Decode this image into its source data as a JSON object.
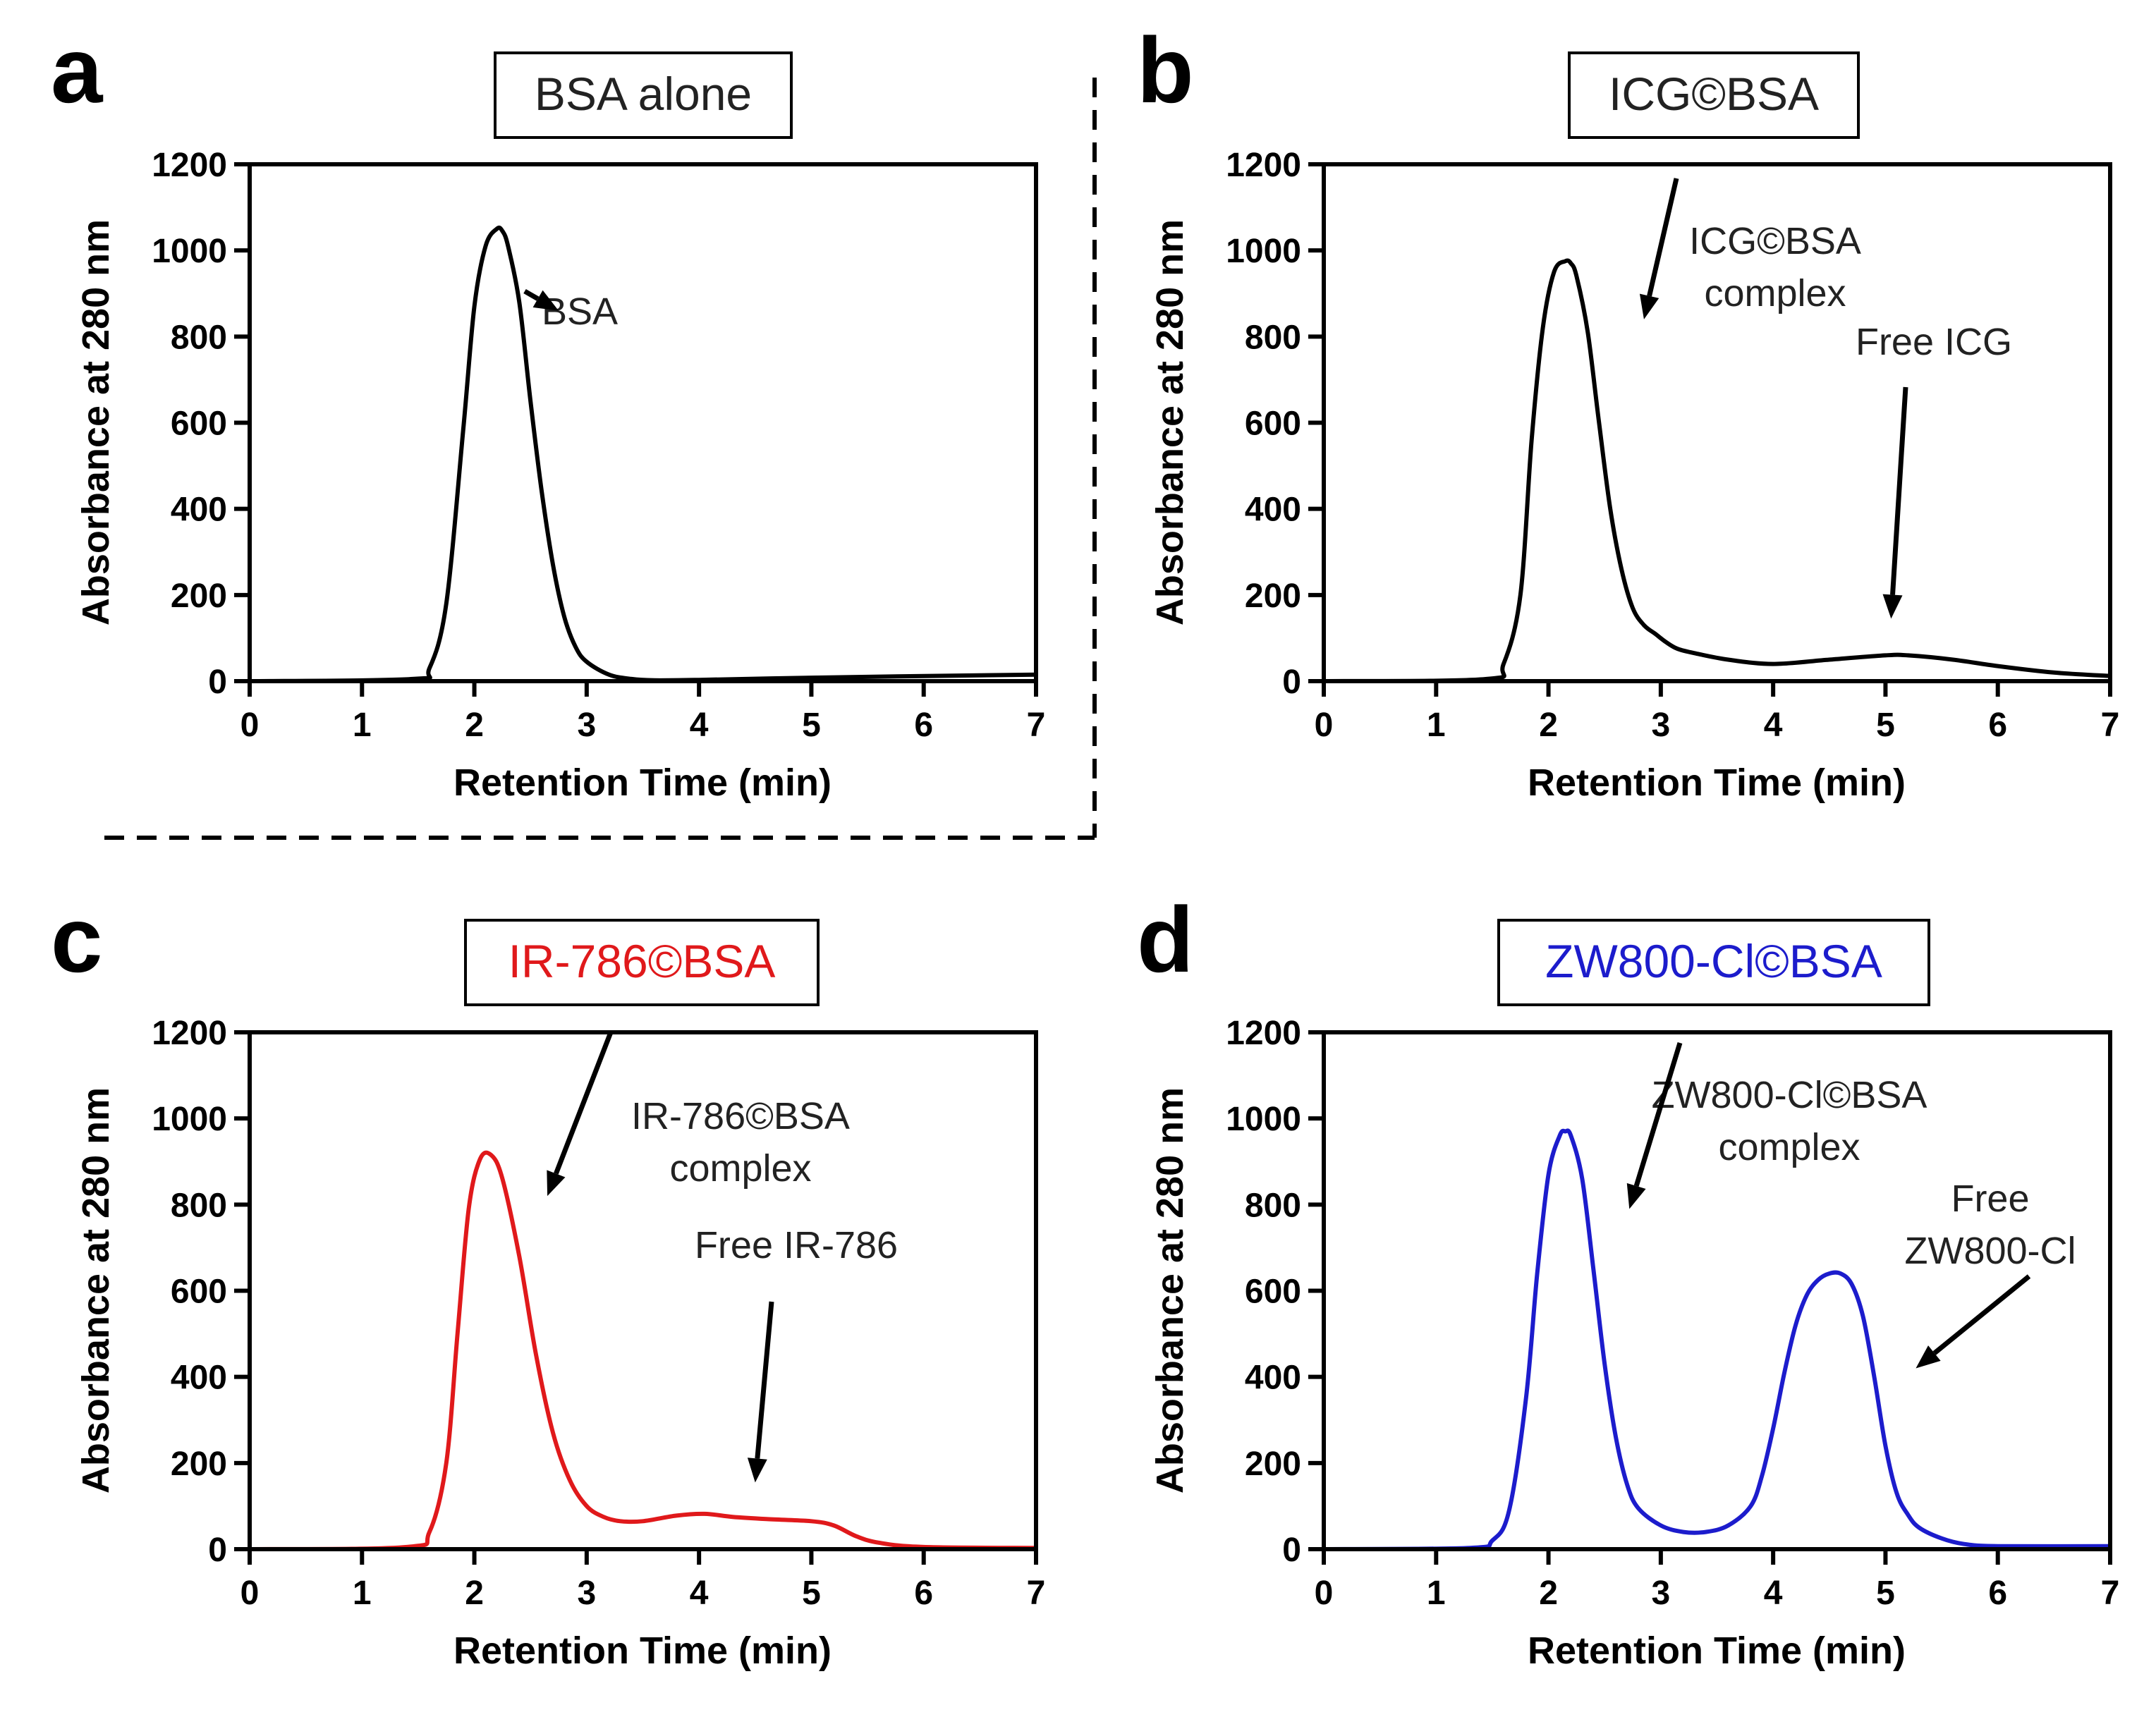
{
  "figure": {
    "divider_color": "#000000"
  },
  "chart_data": [
    {
      "panel": "a",
      "type": "line",
      "title": "BSA alone",
      "title_color": "#222222",
      "line_color": "#000000",
      "xlabel": "Retention Time (min)",
      "ylabel": "Absorbance at 280 nm",
      "xlim": [
        0,
        7
      ],
      "ylim": [
        0,
        1200
      ],
      "xticks": [
        0,
        1,
        2,
        3,
        4,
        5,
        6,
        7
      ],
      "yticks": [
        0,
        200,
        400,
        600,
        800,
        1000,
        1200
      ],
      "grid": false,
      "series": [
        {
          "name": "BSA alone",
          "x": [
            0,
            1.45,
            1.6,
            1.75,
            1.9,
            2.0,
            2.1,
            2.2,
            2.25,
            2.3,
            2.4,
            2.5,
            2.6,
            2.7,
            2.8,
            2.9,
            3.0,
            3.2,
            3.4,
            3.6,
            4.0,
            5.0,
            6.0,
            7.0
          ],
          "y": [
            0,
            5,
            30,
            180,
            580,
            870,
            1010,
            1050,
            1045,
            1010,
            880,
            650,
            440,
            270,
            150,
            80,
            45,
            15,
            5,
            2,
            3,
            8,
            12,
            15
          ]
        }
      ],
      "annotations": [
        {
          "lines": [
            "BSA"
          ],
          "point_to": [
            2.75,
            860
          ]
        }
      ]
    },
    {
      "panel": "b",
      "type": "line",
      "title": "ICG©BSA",
      "title_color": "#222222",
      "line_color": "#000000",
      "xlabel": "Retention Time (min)",
      "ylabel": "Absorbance at 280 nm",
      "xlim": [
        0,
        7
      ],
      "ylim": [
        0,
        1200
      ],
      "xticks": [
        0,
        1,
        2,
        3,
        4,
        5,
        6,
        7
      ],
      "yticks": [
        0,
        200,
        400,
        600,
        800,
        1000,
        1200
      ],
      "grid": false,
      "series": [
        {
          "name": "ICG©BSA",
          "x": [
            0,
            1.45,
            1.6,
            1.75,
            1.85,
            1.95,
            2.05,
            2.15,
            2.2,
            2.25,
            2.35,
            2.45,
            2.55,
            2.65,
            2.75,
            2.85,
            2.95,
            3.05,
            3.15,
            3.3,
            3.6,
            4.0,
            4.5,
            5.0,
            5.2,
            5.6,
            6.0,
            6.5,
            7.0
          ],
          "y": [
            0,
            5,
            40,
            200,
            560,
            820,
            950,
            975,
            970,
            940,
            810,
            600,
            400,
            260,
            170,
            130,
            110,
            90,
            75,
            65,
            50,
            40,
            50,
            60,
            60,
            50,
            35,
            20,
            12
          ]
        }
      ],
      "annotations": [
        {
          "lines": [
            "ICG©BSA",
            "complex"
          ],
          "point_to": [
            2.85,
            840
          ]
        },
        {
          "lines": [
            "Free ICG"
          ],
          "point_to": [
            5.05,
            145
          ]
        }
      ]
    },
    {
      "panel": "c",
      "type": "line",
      "title": "IR-786©BSA",
      "title_color": "#e0191b",
      "line_color": "#e0191b",
      "xlabel": "Retention Time (min)",
      "ylabel": "Absorbance at 280 nm",
      "xlim": [
        0,
        7
      ],
      "ylim": [
        0,
        1200
      ],
      "xticks": [
        0,
        1,
        2,
        3,
        4,
        5,
        6,
        7
      ],
      "yticks": [
        0,
        200,
        400,
        600,
        800,
        1000,
        1200
      ],
      "grid": false,
      "series": [
        {
          "name": "IR-786©BSA",
          "x": [
            0,
            1.4,
            1.6,
            1.75,
            1.85,
            1.95,
            2.05,
            2.15,
            2.25,
            2.4,
            2.55,
            2.7,
            2.85,
            3.0,
            3.15,
            3.3,
            3.5,
            3.8,
            4.05,
            4.3,
            4.6,
            5.0,
            5.2,
            5.4,
            5.6,
            6.0,
            7.0
          ],
          "y": [
            0,
            5,
            40,
            200,
            500,
            790,
            905,
            915,
            860,
            680,
            450,
            270,
            160,
            100,
            75,
            65,
            65,
            78,
            82,
            75,
            70,
            65,
            55,
            30,
            15,
            5,
            3
          ]
        }
      ],
      "annotations": [
        {
          "lines": [
            "IR-786©BSA",
            "complex"
          ],
          "point_to": [
            2.65,
            820
          ]
        },
        {
          "lines": [
            "Free IR-786"
          ],
          "point_to": [
            4.5,
            155
          ]
        }
      ]
    },
    {
      "panel": "d",
      "type": "line",
      "title": "ZW800-Cl©BSA",
      "title_color": "#1c1ccc",
      "line_color": "#1c1ccc",
      "xlabel": "Retention Time (min)",
      "ylabel": "Absorbance at 280 nm",
      "xlim": [
        0,
        7
      ],
      "ylim": [
        0,
        1200
      ],
      "xticks": [
        0,
        1,
        2,
        3,
        4,
        5,
        6,
        7
      ],
      "yticks": [
        0,
        200,
        400,
        600,
        800,
        1000,
        1200
      ],
      "grid": false,
      "series": [
        {
          "name": "ZW800-Cl©BSA",
          "x": [
            0,
            1.3,
            1.5,
            1.65,
            1.8,
            1.9,
            2.0,
            2.1,
            2.15,
            2.2,
            2.3,
            2.4,
            2.5,
            2.6,
            2.7,
            2.8,
            3.0,
            3.2,
            3.4,
            3.6,
            3.8,
            3.9,
            4.0,
            4.1,
            4.2,
            4.3,
            4.4,
            4.5,
            4.6,
            4.7,
            4.8,
            4.9,
            5.0,
            5.1,
            5.2,
            5.3,
            5.5,
            5.7,
            6.0,
            7.0
          ],
          "y": [
            0,
            3,
            20,
            90,
            350,
            640,
            870,
            960,
            970,
            960,
            860,
            650,
            430,
            260,
            150,
            95,
            55,
            40,
            40,
            55,
            100,
            170,
            280,
            410,
            520,
            590,
            625,
            640,
            640,
            615,
            540,
            400,
            240,
            130,
            80,
            50,
            25,
            12,
            7,
            7
          ]
        }
      ],
      "annotations": [
        {
          "lines": [
            "ZW800-Cl©BSA",
            "complex"
          ],
          "point_to": [
            2.72,
            790
          ]
        },
        {
          "lines": [
            "Free",
            "ZW800-Cl"
          ],
          "point_to": [
            5.27,
            420
          ]
        }
      ]
    }
  ]
}
